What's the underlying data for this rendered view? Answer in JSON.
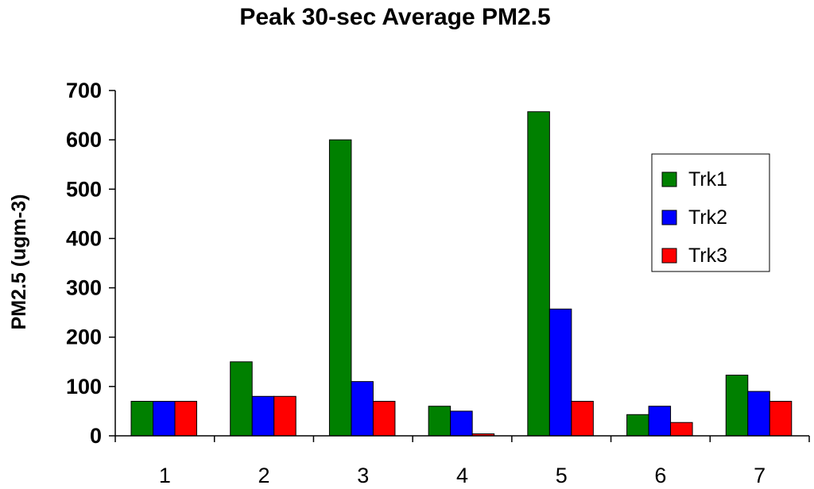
{
  "chart_data": {
    "type": "bar",
    "title": "Peak 30-sec Average PM2.5",
    "xlabel": "",
    "ylabel": "PM2.5 (ugm-3)",
    "ylim": [
      0,
      700
    ],
    "yticks": [
      "0",
      "100",
      "200",
      "300",
      "400",
      "500",
      "600",
      "700"
    ],
    "categories": [
      "1",
      "2",
      "3",
      "4",
      "5",
      "6",
      "7"
    ],
    "series": [
      {
        "name": "Trk1",
        "color": "#008000",
        "values": [
          70,
          150,
          600,
          60,
          657,
          43,
          123
        ]
      },
      {
        "name": "Trk2",
        "color": "#0000FF",
        "values": [
          70,
          80,
          110,
          50,
          257,
          60,
          90
        ]
      },
      {
        "name": "Trk3",
        "color": "#FF0000",
        "values": [
          70,
          80,
          70,
          4,
          70,
          27,
          70
        ]
      }
    ],
    "grid": false,
    "legend": "right"
  }
}
